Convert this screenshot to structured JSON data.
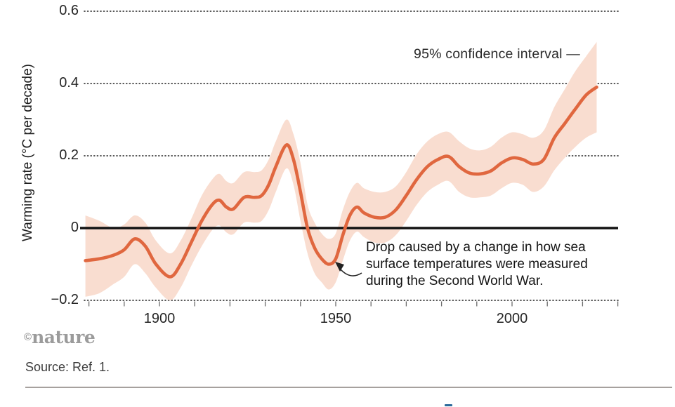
{
  "chart_data": {
    "type": "line",
    "title": "",
    "xlabel": "",
    "ylabel": "Warming rate (°C per decade)",
    "xlim": [
      1877,
      2031
    ],
    "ylim": [
      -0.2,
      0.6
    ],
    "grid": "dotted-horizontal",
    "legend_position": "none",
    "zero_line": true,
    "line_color": "#e0673f",
    "band_color": "#f9ddd0",
    "band_label": "95% confidence interval",
    "yticks": [
      {
        "value": 0.6,
        "label": "0.6"
      },
      {
        "value": 0.4,
        "label": "0.4"
      },
      {
        "value": 0.2,
        "label": "0.2"
      },
      {
        "value": 0,
        "label": "0"
      },
      {
        "value": -0.2,
        "label": "−0.2"
      }
    ],
    "xticks_minor": [
      1880,
      1890,
      1900,
      1910,
      1920,
      1930,
      1940,
      1950,
      1960,
      1970,
      1980,
      1990,
      2000,
      2010,
      2020,
      2030
    ],
    "xtick_labels": [
      {
        "value": 1900,
        "label": "1900"
      },
      {
        "value": 1950,
        "label": "1950"
      },
      {
        "value": 2000,
        "label": "2000"
      }
    ],
    "x": [
      1879,
      1883,
      1887,
      1890,
      1893,
      1896,
      1899,
      1903,
      1906,
      1909,
      1912,
      1915,
      1917,
      1919,
      1921,
      1924,
      1927,
      1929,
      1931,
      1933,
      1936,
      1938,
      1940,
      1942,
      1944,
      1946,
      1948,
      1950,
      1952,
      1954,
      1956,
      1958,
      1961,
      1964,
      1967,
      1970,
      1973,
      1976,
      1979,
      1982,
      1985,
      1988,
      1991,
      1994,
      1997,
      2000,
      2003,
      2006,
      2009,
      2012,
      2015,
      2018,
      2021,
      2024
    ],
    "series": [
      {
        "name": "warming-rate",
        "values": [
          -0.09,
          -0.085,
          -0.075,
          -0.06,
          -0.03,
          -0.05,
          -0.1,
          -0.135,
          -0.1,
          -0.04,
          0.02,
          0.065,
          0.077,
          0.058,
          0.053,
          0.085,
          0.085,
          0.09,
          0.12,
          0.17,
          0.23,
          0.19,
          0.1,
          0,
          -0.055,
          -0.085,
          -0.1,
          -0.085,
          -0.02,
          0.035,
          0.058,
          0.042,
          0.03,
          0.03,
          0.05,
          0.09,
          0.135,
          0.17,
          0.19,
          0.198,
          0.17,
          0.152,
          0.15,
          0.158,
          0.18,
          0.194,
          0.19,
          0.177,
          0.19,
          0.25,
          0.29,
          0.33,
          0.368,
          0.39
        ]
      },
      {
        "name": "ci-lower",
        "values": [
          -0.19,
          -0.18,
          -0.155,
          -0.135,
          -0.1,
          -0.125,
          -0.165,
          -0.2,
          -0.165,
          -0.105,
          -0.05,
          -0.005,
          0.007,
          -0.012,
          -0.017,
          0.015,
          0.015,
          0.02,
          0.05,
          0.1,
          0.165,
          0.12,
          0.02,
          -0.07,
          -0.125,
          -0.15,
          -0.17,
          -0.15,
          -0.09,
          -0.035,
          -0.01,
          -0.025,
          -0.04,
          -0.04,
          -0.02,
          0.02,
          0.065,
          0.1,
          0.12,
          0.13,
          0.1,
          0.085,
          0.085,
          0.09,
          0.11,
          0.125,
          0.12,
          0.1,
          0.115,
          0.16,
          0.195,
          0.225,
          0.25,
          0.265
        ]
      },
      {
        "name": "ci-upper",
        "values": [
          0.035,
          0.02,
          0,
          0.01,
          0.035,
          0.015,
          -0.035,
          -0.07,
          -0.035,
          0.025,
          0.09,
          0.135,
          0.15,
          0.13,
          0.125,
          0.155,
          0.155,
          0.16,
          0.19,
          0.24,
          0.3,
          0.26,
          0.18,
          0.065,
          0.015,
          -0.015,
          -0.03,
          -0.015,
          0.05,
          0.1,
          0.125,
          0.11,
          0.1,
          0.1,
          0.115,
          0.155,
          0.205,
          0.24,
          0.26,
          0.266,
          0.24,
          0.22,
          0.215,
          0.225,
          0.25,
          0.265,
          0.26,
          0.25,
          0.27,
          0.335,
          0.385,
          0.435,
          0.475,
          0.515
        ]
      }
    ]
  },
  "annotations": {
    "ci_label": "95% confidence interval —",
    "drop_note": "Drop caused by a change in how sea\nsurface temperatures were measured\nduring the Second World War."
  },
  "footer": {
    "brand_symbol": "©",
    "brand_name": "nature",
    "source": "Source: Ref. 1."
  }
}
